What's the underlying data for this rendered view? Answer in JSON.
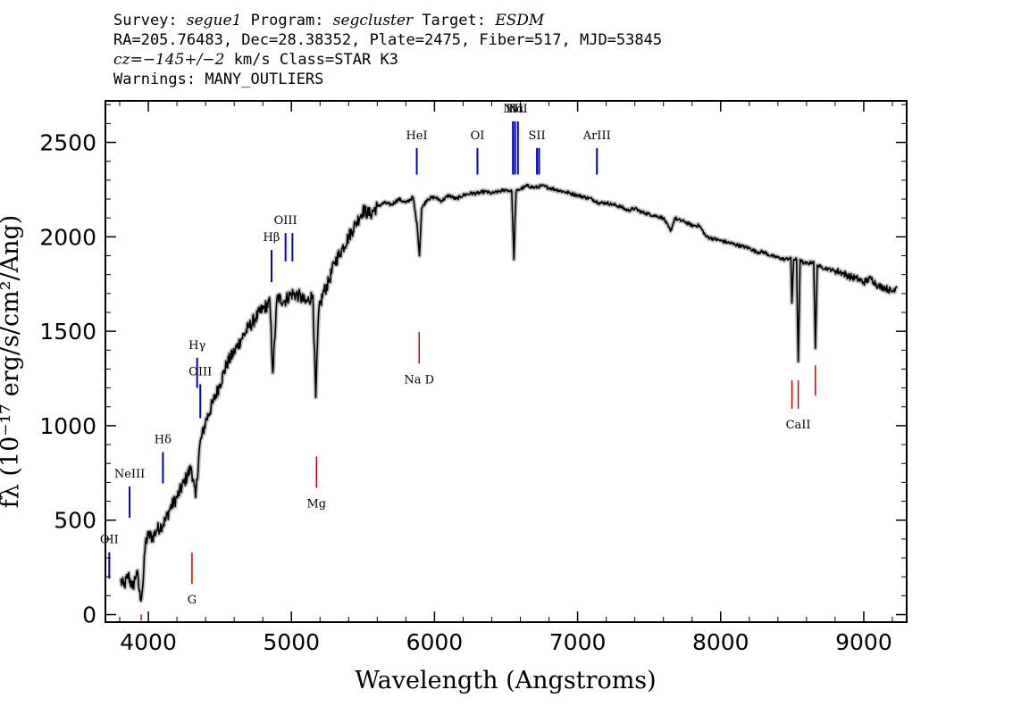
{
  "header": {
    "line1": {
      "survey_label": "Survey: ",
      "survey": "segue1",
      "program_label": " Program: ",
      "program": "segcluster",
      "target_label": " Target: ",
      "target": "ESDM"
    },
    "line2": "RA=205.76483, Dec=28.38352, Plate=2475, Fiber=517, MJD=53845",
    "line3": {
      "cz": "cz=−145+/−2",
      "rest": " km/s Class=STAR K3"
    },
    "line4": "Warnings: MANY_OUTLIERS"
  },
  "chart_data": {
    "type": "line",
    "xlabel": "Wavelength (Angstroms)",
    "ylabel": "fλ (10⁻¹⁷ erg/s/cm²/Ang)",
    "xlim": [
      3700,
      9300
    ],
    "ylim": [
      -40,
      2720
    ],
    "xticks": [
      4000,
      5000,
      6000,
      7000,
      8000,
      9000
    ],
    "yticks": [
      0,
      500,
      1000,
      1500,
      2000,
      2500
    ],
    "colors": {
      "spectrum": "#000000",
      "error": "#b0b0b0",
      "emission": "#0000cc",
      "absorption": "#cc0000"
    },
    "spectrum": {
      "name": "flux",
      "x": [
        3805,
        3830,
        3860,
        3890,
        3920,
        3945,
        3960,
        3980,
        4000,
        4030,
        4060,
        4090,
        4120,
        4150,
        4200,
        4250,
        4300,
        4330,
        4360,
        4400,
        4450,
        4500,
        4550,
        4600,
        4650,
        4700,
        4750,
        4800,
        4850,
        4870,
        4900,
        4950,
        5000,
        5050,
        5100,
        5150,
        5170,
        5190,
        5220,
        5260,
        5300,
        5350,
        5400,
        5450,
        5500,
        5550,
        5600,
        5650,
        5700,
        5750,
        5800,
        5850,
        5880,
        5895,
        5910,
        5950,
        6000,
        6050,
        6100,
        6150,
        6200,
        6250,
        6300,
        6350,
        6400,
        6450,
        6500,
        6540,
        6555,
        6563,
        6570,
        6590,
        6620,
        6650,
        6700,
        6750,
        6800,
        6850,
        6900,
        6950,
        7000,
        7050,
        7100,
        7150,
        7200,
        7250,
        7300,
        7350,
        7400,
        7450,
        7500,
        7550,
        7600,
        7650,
        7680,
        7700,
        7750,
        7800,
        7850,
        7900,
        7950,
        8000,
        8050,
        8100,
        8150,
        8200,
        8250,
        8300,
        8350,
        8400,
        8450,
        8490,
        8498,
        8510,
        8530,
        8542,
        8555,
        8580,
        8620,
        8650,
        8662,
        8675,
        8700,
        8750,
        8800,
        8850,
        8900,
        8950,
        9000,
        9050,
        9100,
        9150,
        9200,
        9230
      ],
      "y": [
        180,
        150,
        210,
        140,
        230,
        80,
        140,
        380,
        420,
        410,
        450,
        470,
        500,
        560,
        620,
        700,
        780,
        620,
        900,
        1020,
        1120,
        1220,
        1330,
        1390,
        1460,
        1520,
        1570,
        1620,
        1650,
        1280,
        1680,
        1660,
        1700,
        1690,
        1650,
        1690,
        1150,
        1600,
        1700,
        1760,
        1860,
        1930,
        2000,
        2070,
        2140,
        2120,
        2160,
        2180,
        2170,
        2200,
        2180,
        2210,
        2050,
        1900,
        2150,
        2200,
        2210,
        2190,
        2220,
        2200,
        2220,
        2230,
        2230,
        2240,
        2230,
        2240,
        2250,
        2240,
        1880,
        2100,
        2240,
        2250,
        2260,
        2270,
        2260,
        2270,
        2260,
        2250,
        2240,
        2230,
        2220,
        2210,
        2200,
        2180,
        2180,
        2170,
        2160,
        2140,
        2150,
        2130,
        2120,
        2110,
        2100,
        2030,
        2100,
        2090,
        2080,
        2060,
        2060,
        2000,
        1990,
        1980,
        1970,
        1960,
        1950,
        1940,
        1920,
        1920,
        1900,
        1890,
        1880,
        1890,
        1650,
        1880,
        1880,
        1340,
        1880,
        1860,
        1860,
        1870,
        1410,
        1850,
        1840,
        1830,
        1820,
        1810,
        1790,
        1780,
        1760,
        1780,
        1740,
        1730,
        1710,
        1740
      ]
    },
    "lines": [
      {
        "label": "OII",
        "wave": 3727,
        "kind": "emission",
        "text": "OII"
      },
      {
        "label": "NeIII",
        "wave": 3869,
        "kind": "emission",
        "text": "NeIII"
      },
      {
        "label": "K/H",
        "wave": 3950,
        "kind": "absorption",
        "text": ""
      },
      {
        "label": "Hδ",
        "wave": 4102,
        "kind": "emission",
        "text": "Hδ"
      },
      {
        "label": "G",
        "wave": 4305,
        "kind": "absorption",
        "text": "G"
      },
      {
        "label": "Hγ",
        "wave": 4341,
        "kind": "emission",
        "text": "Hγ"
      },
      {
        "label": "OIII",
        "wave": 4363,
        "kind": "emission",
        "text": "OIII"
      },
      {
        "label": "Hβ",
        "wave": 4861,
        "kind": "emission",
        "text": "Hβ"
      },
      {
        "label": "OIII",
        "wave": 4959,
        "kind": "emission",
        "text": "OIII"
      },
      {
        "label": "OIII",
        "wave": 5007,
        "kind": "emission",
        "text": ""
      },
      {
        "label": "Mg",
        "wave": 5175,
        "kind": "absorption",
        "text": "Mg"
      },
      {
        "label": "HeI",
        "wave": 5876,
        "kind": "emission",
        "text": "HeI"
      },
      {
        "label": "Na D",
        "wave": 5893,
        "kind": "absorption",
        "text": "Na  D"
      },
      {
        "label": "OI",
        "wave": 6300,
        "kind": "emission",
        "text": "OI"
      },
      {
        "label": "NII",
        "wave": 6548,
        "kind": "emission",
        "text": "NII"
      },
      {
        "label": "Hα",
        "wave": 6563,
        "kind": "emission",
        "text": "Hα"
      },
      {
        "label": "NII",
        "wave": 6583,
        "kind": "emission",
        "text": "NII"
      },
      {
        "label": "SII",
        "wave": 6716,
        "kind": "emission",
        "text": "SII"
      },
      {
        "label": "SII",
        "wave": 6731,
        "kind": "emission",
        "text": ""
      },
      {
        "label": "ArIII",
        "wave": 7135,
        "kind": "emission",
        "text": "ArIII"
      },
      {
        "label": "CaII",
        "wave": 8498,
        "kind": "absorption",
        "text": ""
      },
      {
        "label": "CaII",
        "wave": 8542,
        "kind": "absorption",
        "text": "CaII"
      },
      {
        "label": "CaII",
        "wave": 8662,
        "kind": "absorption",
        "text": ""
      }
    ]
  }
}
